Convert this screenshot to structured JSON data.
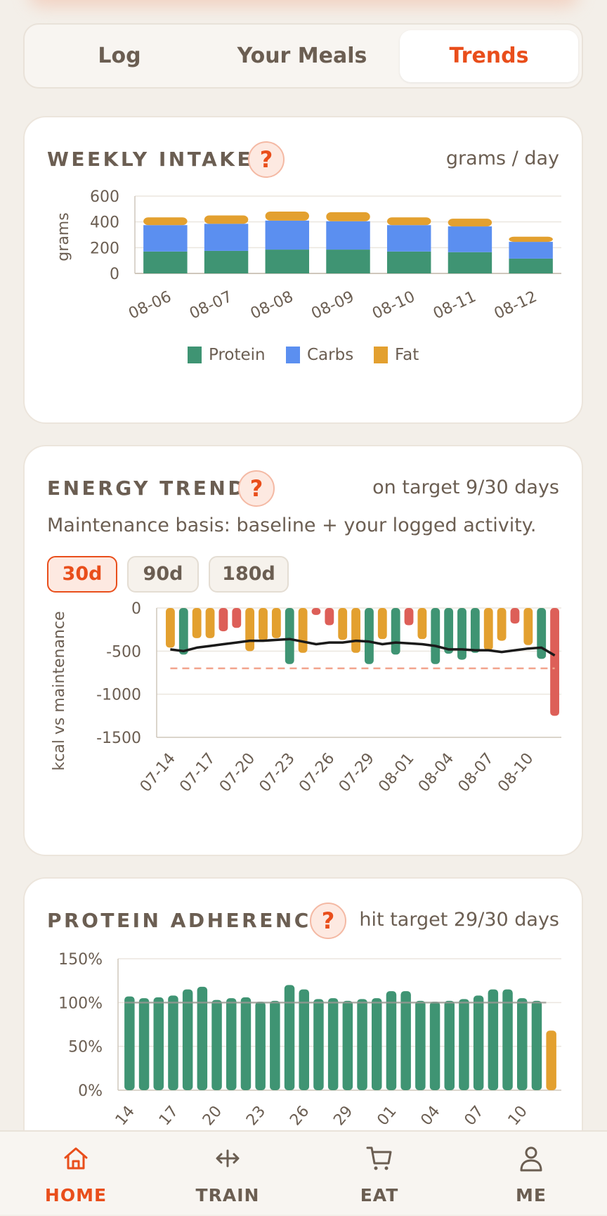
{
  "tabs": [
    {
      "label": "Log"
    },
    {
      "label": "Your Meals"
    },
    {
      "label": "Trends"
    }
  ],
  "weekly": {
    "title": "WEEKLY INTAKE",
    "help": "?",
    "unit": "grams / day",
    "chart_data": {
      "type": "bar",
      "stacked": true,
      "categories": [
        "08-06",
        "08-07",
        "08-08",
        "08-09",
        "08-10",
        "08-11",
        "08-12"
      ],
      "series": [
        {
          "name": "Protein",
          "color": "#3f9473",
          "values": [
            170,
            175,
            185,
            185,
            170,
            165,
            115
          ]
        },
        {
          "name": "Carbs",
          "color": "#5b8ff0",
          "values": [
            205,
            210,
            225,
            220,
            205,
            200,
            130
          ]
        },
        {
          "name": "Fat",
          "color": "#e3a02f",
          "values": [
            60,
            65,
            70,
            70,
            60,
            60,
            40
          ]
        }
      ],
      "ylabel": "grams",
      "ylim": [
        0,
        600
      ],
      "yticks": [
        "0",
        "200",
        "400",
        "600"
      ],
      "grid": true,
      "legend": "bottom"
    }
  },
  "energy": {
    "title": "ENERGY TREND",
    "help": "?",
    "meta": "on target 9/30 days",
    "subtitle": "Maintenance basis: baseline + your logged activity.",
    "ranges": [
      {
        "label": "30d",
        "active": true
      },
      {
        "label": "90d",
        "active": false
      },
      {
        "label": "180d",
        "active": false
      }
    ],
    "chart_data": {
      "type": "bar",
      "x": [
        "07-14",
        "07-15",
        "07-16",
        "07-17",
        "07-18",
        "07-19",
        "07-20",
        "07-21",
        "07-22",
        "07-23",
        "07-24",
        "07-25",
        "07-26",
        "07-27",
        "07-28",
        "07-29",
        "07-30",
        "07-31",
        "08-01",
        "08-02",
        "08-03",
        "08-04",
        "08-05",
        "08-06",
        "08-07",
        "08-08",
        "08-09",
        "08-10",
        "08-11",
        "08-12"
      ],
      "xticks": [
        "07-14",
        "07-17",
        "07-20",
        "07-23",
        "07-26",
        "07-29",
        "08-01",
        "08-04",
        "08-07",
        "08-10"
      ],
      "values": [
        -460,
        -540,
        -350,
        -350,
        -270,
        -230,
        -500,
        -380,
        -350,
        -650,
        -520,
        -80,
        -200,
        -370,
        -520,
        -650,
        -360,
        -540,
        -200,
        -360,
        -650,
        -530,
        -600,
        -520,
        -490,
        -380,
        -180,
        -430,
        -590,
        -1250
      ],
      "colors": [
        "#e3a02f",
        "#3f9473",
        "#e3a02f",
        "#e3a02f",
        "#dd5f58",
        "#dd5f58",
        "#e3a02f",
        "#e3a02f",
        "#e3a02f",
        "#3f9473",
        "#e3a02f",
        "#dd5f58",
        "#dd5f58",
        "#e3a02f",
        "#e3a02f",
        "#3f9473",
        "#e3a02f",
        "#3f9473",
        "#dd5f58",
        "#e3a02f",
        "#3f9473",
        "#3f9473",
        "#3f9473",
        "#3f9473",
        "#e3a02f",
        "#e3a02f",
        "#dd5f58",
        "#e3a02f",
        "#3f9473",
        "#dd5f58"
      ],
      "trend": [
        -480,
        -500,
        -460,
        -440,
        -420,
        -400,
        -380,
        -380,
        -370,
        -360,
        -390,
        -420,
        -400,
        -400,
        -380,
        -390,
        -420,
        -400,
        -410,
        -420,
        -440,
        -480,
        -480,
        -490,
        -490,
        -510,
        -490,
        -470,
        -460,
        -550
      ],
      "target_line": -700,
      "ylabel": "kcal vs maintenance",
      "ylim": [
        -1500,
        0
      ],
      "yticks": [
        "0",
        "-500",
        "-1000",
        "-1500"
      ]
    }
  },
  "protein": {
    "title": "PROTEIN ADHERENCE",
    "help": "?",
    "meta": "hit target 29/30 days",
    "chart_data": {
      "type": "bar",
      "values": [
        107,
        105,
        106,
        108,
        115,
        118,
        103,
        105,
        106,
        101,
        102,
        120,
        115,
        104,
        105,
        102,
        104,
        105,
        113,
        113,
        102,
        101,
        102,
        104,
        108,
        115,
        115,
        105,
        102,
        68
      ],
      "colors_hit": "#3f9473",
      "colors_miss": "#e3a02f",
      "target_line": 100,
      "xticks": [
        "14",
        "17",
        "20",
        "23",
        "26",
        "29",
        "01",
        "04",
        "07",
        "10"
      ],
      "ylim": [
        0,
        150
      ],
      "yticks": [
        "0%",
        "50%",
        "100%",
        "150%"
      ]
    }
  },
  "nav": [
    {
      "label": "HOME",
      "icon": "home-icon",
      "active": true
    },
    {
      "label": "TRAIN",
      "icon": "train-icon",
      "active": false
    },
    {
      "label": "EAT",
      "icon": "cart-icon",
      "active": false
    },
    {
      "label": "ME",
      "icon": "user-icon",
      "active": false
    }
  ],
  "colors": {
    "accent": "#e94e1b",
    "text": "#6b5e52",
    "protein": "#3f9473",
    "carbs": "#5b8ff0",
    "fat": "#e3a02f",
    "over": "#dd5f58"
  }
}
